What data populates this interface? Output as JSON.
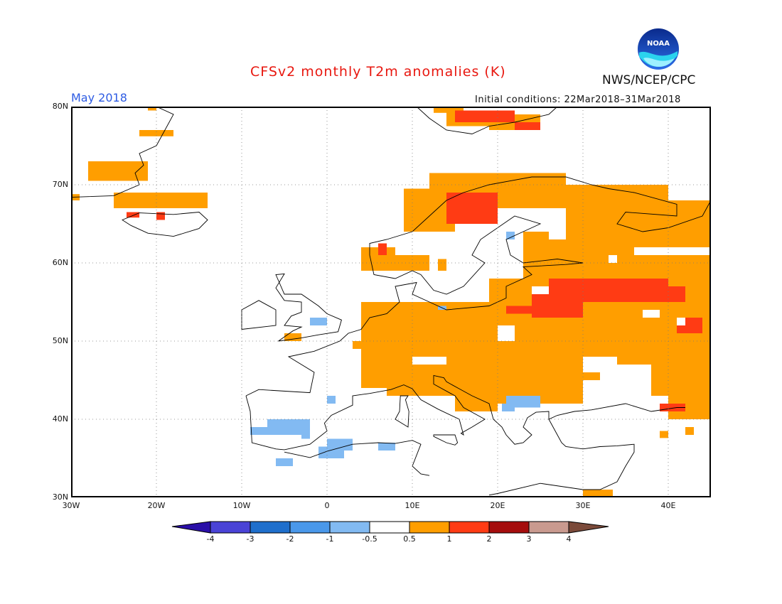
{
  "header": {
    "title": "CFSv2 monthly T2m anomalies (K)",
    "agency": "NWS/NCEP/CPC",
    "logo_text": "NOAA",
    "month": "May 2018",
    "initial_conditions": "Initial conditions: 22Mar2018–31Mar2018"
  },
  "map": {
    "lat_labels": [
      "80N",
      "70N",
      "60N",
      "50N",
      "40N",
      "30N"
    ],
    "lon_labels": [
      "30W",
      "20W",
      "10W",
      "0",
      "10E",
      "20E",
      "30E",
      "40E"
    ],
    "lon_range": [
      -30,
      45
    ],
    "lat_range": [
      30,
      80
    ],
    "grid_lines": true
  },
  "colorbar": {
    "labels": [
      "-4",
      "-3",
      "-2",
      "-1",
      "-0.5",
      "0.5",
      "1",
      "2",
      "3",
      "4"
    ],
    "colors": [
      "#2a0fa8",
      "#4a43d6",
      "#1f6fcc",
      "#4a98ea",
      "#82baf2",
      "#ffffff",
      "#ff9e00",
      "#ff3b14",
      "#a50d0d",
      "#c99a8f",
      "#7b4a3a"
    ]
  },
  "colors": {
    "warm1": "#ff9e00",
    "warm2": "#ff3b14",
    "cool1": "#82baf2",
    "title": "#e8170f",
    "month": "#2d5be3"
  }
}
